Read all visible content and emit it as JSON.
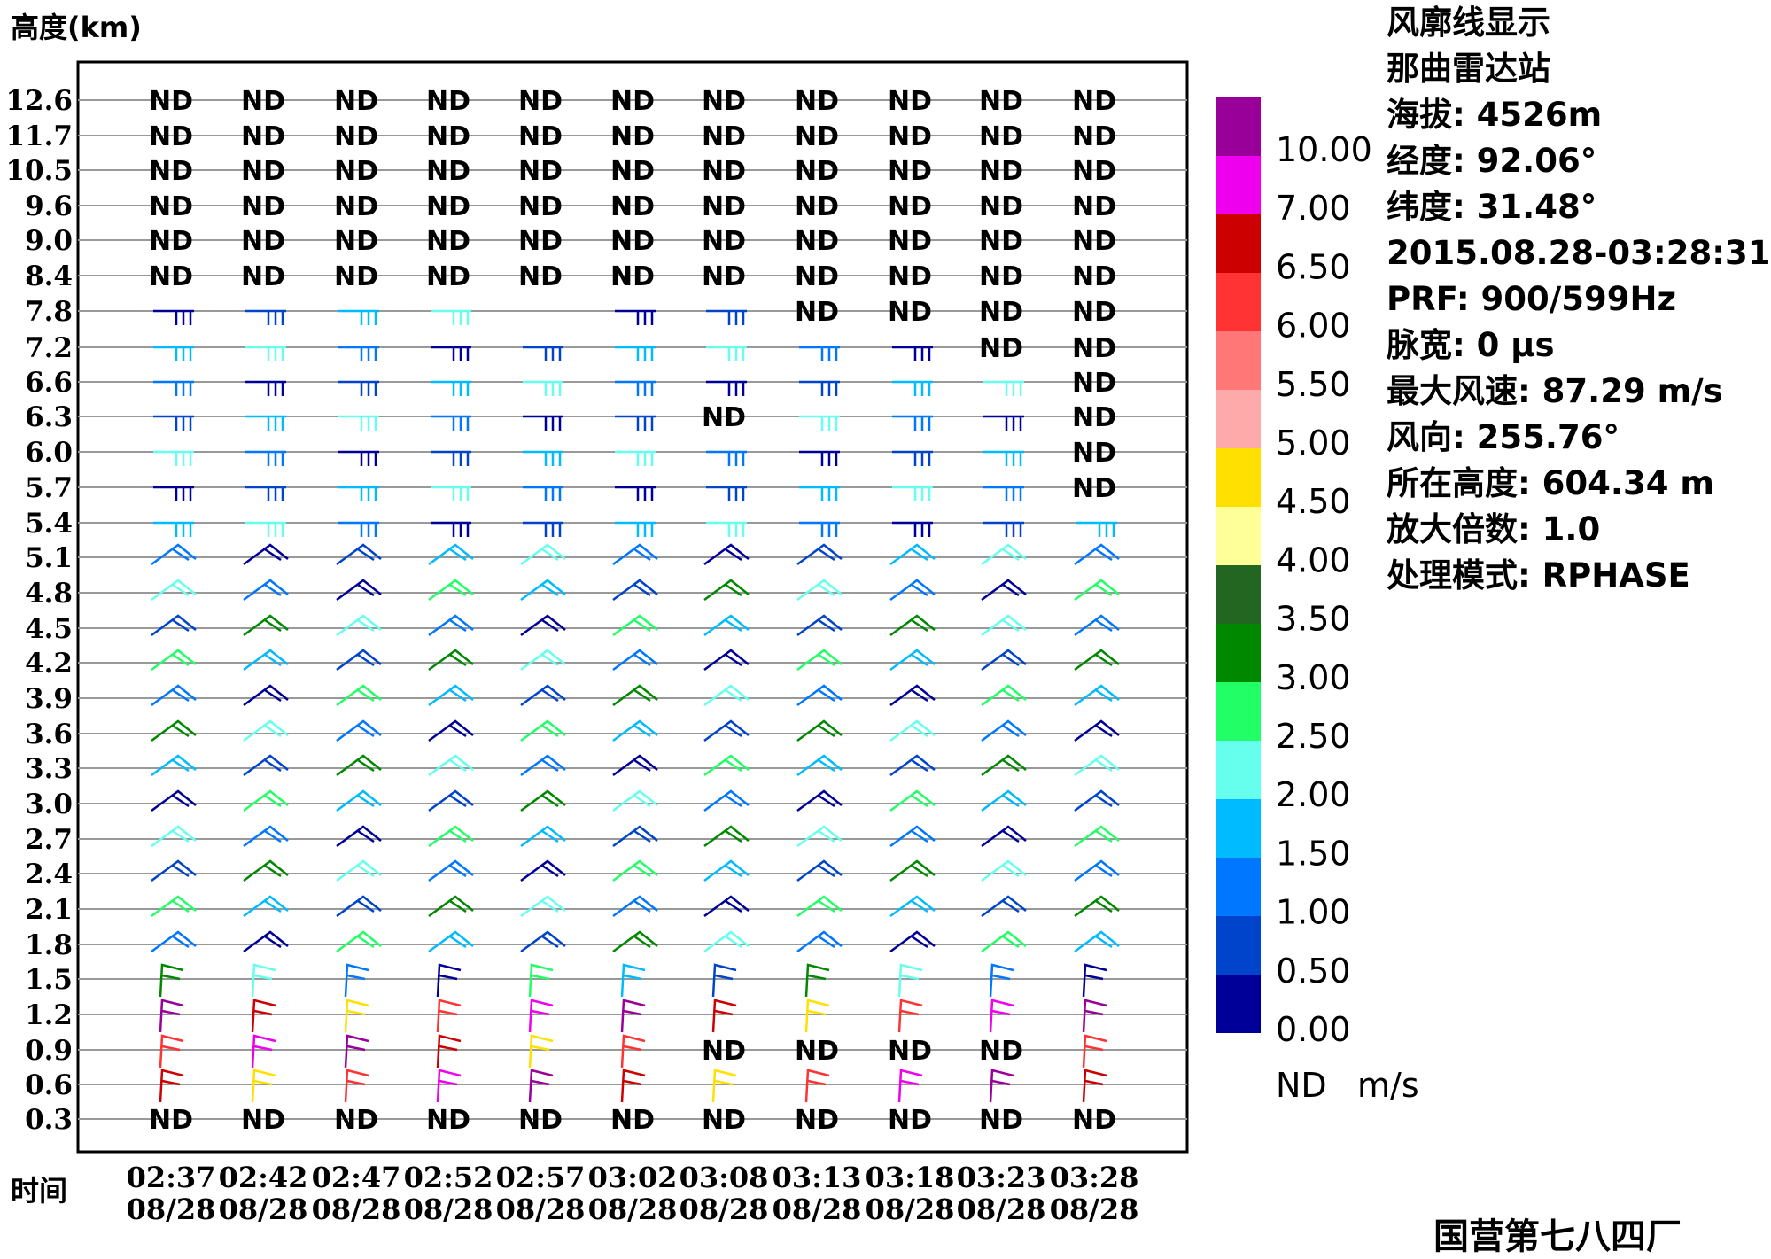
{
  "chart_data": {
    "type": "wind_profile",
    "title": "风廓线显示",
    "ylabel": "高度(km)",
    "xlabel": "时间",
    "heights": [
      "0.3",
      "0.6",
      "0.9",
      "1.2",
      "1.5",
      "1.8",
      "2.1",
      "2.4",
      "2.7",
      "3.0",
      "3.3",
      "3.6",
      "3.9",
      "4.2",
      "4.5",
      "4.8",
      "5.1",
      "5.4",
      "5.7",
      "6.0",
      "6.3",
      "6.6",
      "7.2",
      "7.8",
      "8.4",
      "9.0",
      "9.6",
      "10.5",
      "11.7",
      "12.6"
    ],
    "times": [
      "02:37",
      "02:42",
      "02:47",
      "02:52",
      "02:57",
      "03:02",
      "03:08",
      "03:13",
      "03:18",
      "03:23",
      "03:28"
    ],
    "dates": [
      "08/28",
      "08/28",
      "08/28",
      "08/28",
      "08/28",
      "08/28",
      "08/28",
      "08/28",
      "08/28",
      "08/28",
      "08/28"
    ],
    "nd_label": "ND",
    "nd_cells": [
      [
        0,
        0
      ],
      [
        1,
        0
      ],
      [
        2,
        0
      ],
      [
        3,
        0
      ],
      [
        4,
        0
      ],
      [
        5,
        0
      ],
      [
        6,
        0
      ],
      [
        7,
        0
      ],
      [
        8,
        0
      ],
      [
        9,
        0
      ],
      [
        10,
        0
      ],
      [
        6,
        2
      ],
      [
        7,
        2
      ],
      [
        8,
        2
      ],
      [
        9,
        2
      ],
      [
        6,
        20
      ],
      [
        10,
        18
      ],
      [
        10,
        19
      ],
      [
        10,
        20
      ],
      [
        10,
        21
      ],
      [
        9,
        22
      ],
      [
        10,
        22
      ],
      [
        7,
        23
      ],
      [
        8,
        23
      ],
      [
        9,
        23
      ],
      [
        10,
        23
      ],
      [
        0,
        24
      ],
      [
        1,
        24
      ],
      [
        2,
        24
      ],
      [
        3,
        24
      ],
      [
        4,
        24
      ],
      [
        5,
        24
      ],
      [
        6,
        24
      ],
      [
        7,
        24
      ],
      [
        8,
        24
      ],
      [
        9,
        24
      ],
      [
        10,
        24
      ],
      [
        0,
        25
      ],
      [
        1,
        25
      ],
      [
        2,
        25
      ],
      [
        3,
        25
      ],
      [
        4,
        25
      ],
      [
        5,
        25
      ],
      [
        6,
        25
      ],
      [
        7,
        25
      ],
      [
        8,
        25
      ],
      [
        9,
        25
      ],
      [
        10,
        25
      ],
      [
        0,
        26
      ],
      [
        1,
        26
      ],
      [
        2,
        26
      ],
      [
        3,
        26
      ],
      [
        4,
        26
      ],
      [
        5,
        26
      ],
      [
        6,
        26
      ],
      [
        7,
        26
      ],
      [
        8,
        26
      ],
      [
        9,
        26
      ],
      [
        10,
        26
      ],
      [
        0,
        27
      ],
      [
        1,
        27
      ],
      [
        2,
        27
      ],
      [
        3,
        27
      ],
      [
        4,
        27
      ],
      [
        5,
        27
      ],
      [
        6,
        27
      ],
      [
        7,
        27
      ],
      [
        8,
        27
      ],
      [
        9,
        27
      ],
      [
        10,
        27
      ],
      [
        0,
        28
      ],
      [
        1,
        28
      ],
      [
        2,
        28
      ],
      [
        3,
        28
      ],
      [
        4,
        28
      ],
      [
        5,
        28
      ],
      [
        6,
        28
      ],
      [
        7,
        28
      ],
      [
        8,
        28
      ],
      [
        9,
        28
      ],
      [
        10,
        28
      ],
      [
        0,
        29
      ],
      [
        1,
        29
      ],
      [
        2,
        29
      ],
      [
        3,
        29
      ],
      [
        4,
        29
      ],
      [
        5,
        29
      ],
      [
        6,
        29
      ],
      [
        7,
        29
      ],
      [
        8,
        29
      ],
      [
        9,
        29
      ],
      [
        10,
        29
      ]
    ],
    "colorbar": {
      "labels": [
        "10.00",
        "7.00",
        "6.50",
        "6.00",
        "5.50",
        "5.00",
        "4.50",
        "4.00",
        "3.50",
        "3.00",
        "2.50",
        "2.00",
        "1.50",
        "1.00",
        "0.50",
        "0.00"
      ],
      "colors_top_to_bottom": [
        "#990099",
        "#ee00ee",
        "#cc0000",
        "#ff3333",
        "#ff7777",
        "#ffaaaa",
        "#ffe000",
        "#ffff99",
        "#226622",
        "#008800",
        "#22ff66",
        "#66ffee",
        "#00bbff",
        "#0077ff",
        "#0044cc",
        "#000099"
      ],
      "nd_label": "ND",
      "unit": "m/s"
    }
  },
  "info": {
    "title": "风廓线显示",
    "station": "那曲雷达站",
    "altitude": "海拔: 4526m",
    "longitude": "经度: 92.06°",
    "latitude": "纬度: 31.48°",
    "datetime": "2015.08.28-03:28:31",
    "prf": "PRF: 900/599Hz",
    "pulse": "脉宽: 0 μs",
    "max_speed": "最大风速: 87.29 m/s",
    "direction": "风向: 255.76°",
    "height": "所在高度: 604.34 m",
    "zoom": "放大倍数: 1.0",
    "mode": "处理模式: RPHASE"
  },
  "footer": "国营第七八四厂"
}
